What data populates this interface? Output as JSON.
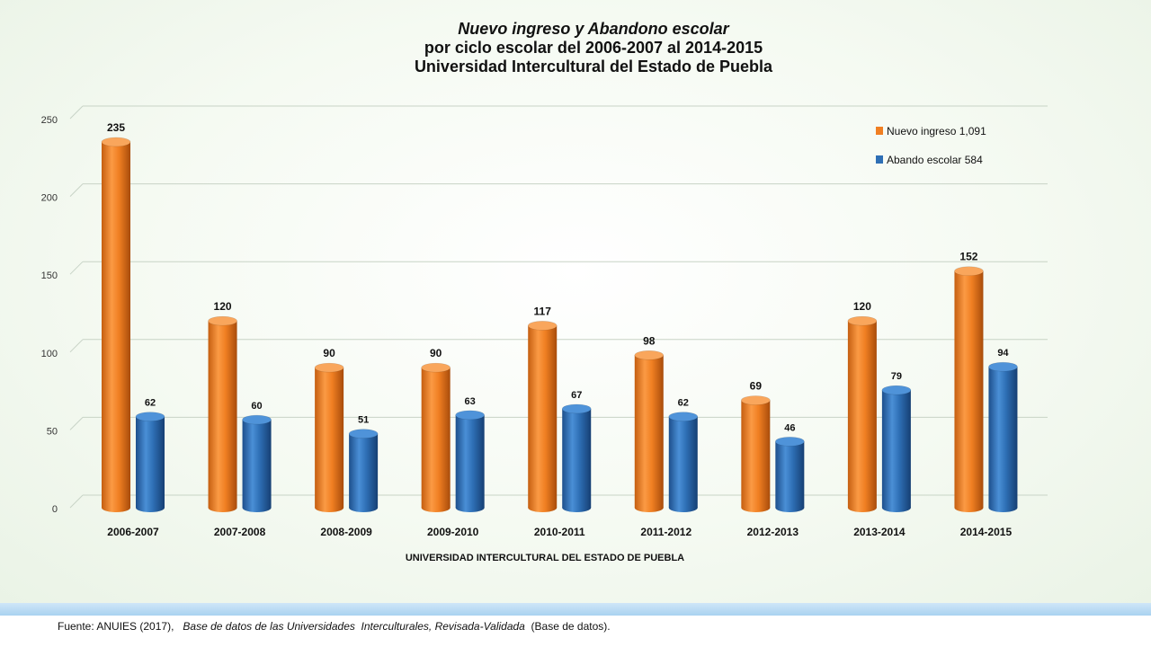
{
  "chart_data": {
    "type": "bar",
    "title_lines": [
      "Nuevo ingreso y Abandono escolar",
      "por  ciclo escolar  del  2006-2007 al 2014-2015",
      "Universidad Intercultural del Estado de Puebla"
    ],
    "xlabel": "UNIVERSIDAD INTERCULTURAL DEL ESTADO DE PUEBLA",
    "ylabel": "",
    "ylim": [
      0,
      250
    ],
    "yticks": [
      0,
      50,
      100,
      150,
      200,
      250
    ],
    "grid": true,
    "legend_position": "top-right",
    "categories": [
      "2006-2007",
      "2007-2008",
      "2008-2009",
      "2009-2010",
      "2010-2011",
      "2011-2012",
      "2012-2013",
      "2013-2014",
      "2014-2015"
    ],
    "series": [
      {
        "name": "Nuevo ingreso  1,091",
        "color": "#f07f22",
        "values": [
          235,
          120,
          90,
          90,
          117,
          98,
          69,
          120,
          152
        ]
      },
      {
        "name": "Abando escolar  584",
        "color": "#2e6fb5",
        "values": [
          62,
          60,
          51,
          63,
          67,
          62,
          46,
          79,
          94
        ]
      }
    ]
  },
  "footer": {
    "prefix": "Fuente: ANUIES (2017),",
    "italic": "Base de datos de las Universidades  Interculturales, Revisada-Validada",
    "suffix": "(Base de datos)."
  }
}
